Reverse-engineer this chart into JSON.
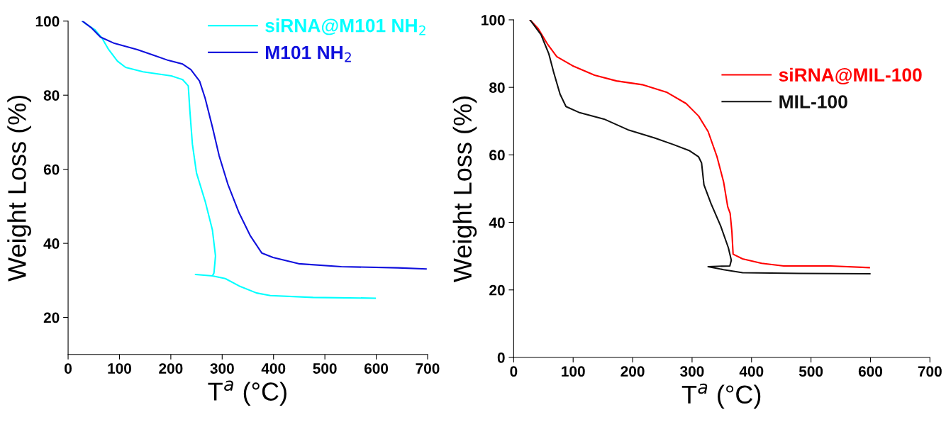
{
  "chart_data": [
    {
      "type": "line",
      "xlabel": "T$^{a}$ (°C)",
      "ylabel": "Weight Loss (%)",
      "xlim": [
        0,
        700
      ],
      "ylim": [
        10,
        100
      ],
      "xticks": [
        0,
        100,
        200,
        300,
        400,
        500,
        600,
        700
      ],
      "yticks": [
        20,
        40,
        60,
        80,
        100
      ],
      "legend": "top right",
      "grid": false,
      "marker": "none",
      "line_style": "solid",
      "series": [
        {
          "name": "siRNA@M101 NH$_{2}$",
          "color": "#00ffff",
          "x": [
            28,
            35,
            52,
            66,
            79,
            96,
            112,
            146,
            201,
            223,
            234,
            237,
            242,
            250,
            267,
            281,
            287,
            284,
            281,
            248,
            281,
            306,
            333,
            367,
            394,
            477,
            598
          ],
          "values": [
            100,
            99.2,
            97.7,
            95.4,
            92.3,
            89.2,
            87.5,
            86.3,
            85.2,
            84.2,
            82.5,
            76,
            66.8,
            59,
            51.3,
            43.6,
            36.6,
            32,
            31.2,
            31.6,
            31.2,
            30.5,
            28.5,
            26.6,
            25.9,
            25.4,
            25.2
          ]
        },
        {
          "name": "M101 NH$_{2}$",
          "color": "#1010dd",
          "x": [
            28,
            46,
            63,
            90,
            135,
            168,
            195,
            223,
            239,
            256,
            267,
            281,
            294,
            311,
            333,
            355,
            377,
            399,
            449,
            532,
            642,
            697
          ],
          "values": [
            100,
            98.1,
            95.7,
            94,
            92.3,
            90.7,
            89.4,
            88.4,
            86.9,
            83.8,
            79.1,
            71.4,
            63.7,
            56,
            48.2,
            42,
            37.4,
            36.2,
            34.5,
            33.7,
            33.4,
            33.1
          ]
        }
      ]
    },
    {
      "type": "line",
      "xlabel": "T$^{a}$ (°C)",
      "ylabel": "Weight Loss (%)",
      "xlim": [
        0,
        700
      ],
      "ylim": [
        0,
        100
      ],
      "xticks": [
        0,
        100,
        200,
        300,
        400,
        500,
        600,
        700
      ],
      "yticks": [
        0,
        20,
        40,
        60,
        80,
        100
      ],
      "legend": "top right",
      "grid": false,
      "marker": "none",
      "line_style": "solid",
      "series": [
        {
          "name": "siRNA@MIL-100",
          "color": "#ff0000",
          "x": [
            27.5,
            40.8,
            56.6,
            72.5,
            99,
            136,
            173,
            216,
            258,
            290,
            311,
            327,
            342,
            353,
            360,
            364,
            367,
            369,
            385,
            417,
            454,
            533,
            598
          ],
          "values": [
            100,
            97.5,
            92.9,
            89.1,
            86.4,
            83.6,
            81.9,
            80.8,
            78.5,
            75.2,
            71.5,
            66.9,
            59.4,
            52,
            44.6,
            42.7,
            37.2,
            30.6,
            29.2,
            27.9,
            27.1,
            27.1,
            26.6
          ]
        },
        {
          "name": "MIL-100",
          "color": "#111111",
          "x": [
            27.5,
            46,
            59,
            67.2,
            78,
            88,
            109.6,
            152,
            194,
            237,
            268,
            295,
            311,
            316,
            320,
            332,
            348,
            361,
            366,
            363.5,
            327,
            353,
            385,
            480,
            599
          ],
          "values": [
            100,
            95.6,
            90,
            84.5,
            78,
            74.3,
            72.6,
            70.6,
            67.3,
            65,
            63.1,
            61.3,
            59.4,
            57.6,
            51.1,
            45.5,
            39,
            32.5,
            28.8,
            27.1,
            26.9,
            26,
            25.1,
            24.9,
            24.8
          ]
        }
      ]
    }
  ]
}
